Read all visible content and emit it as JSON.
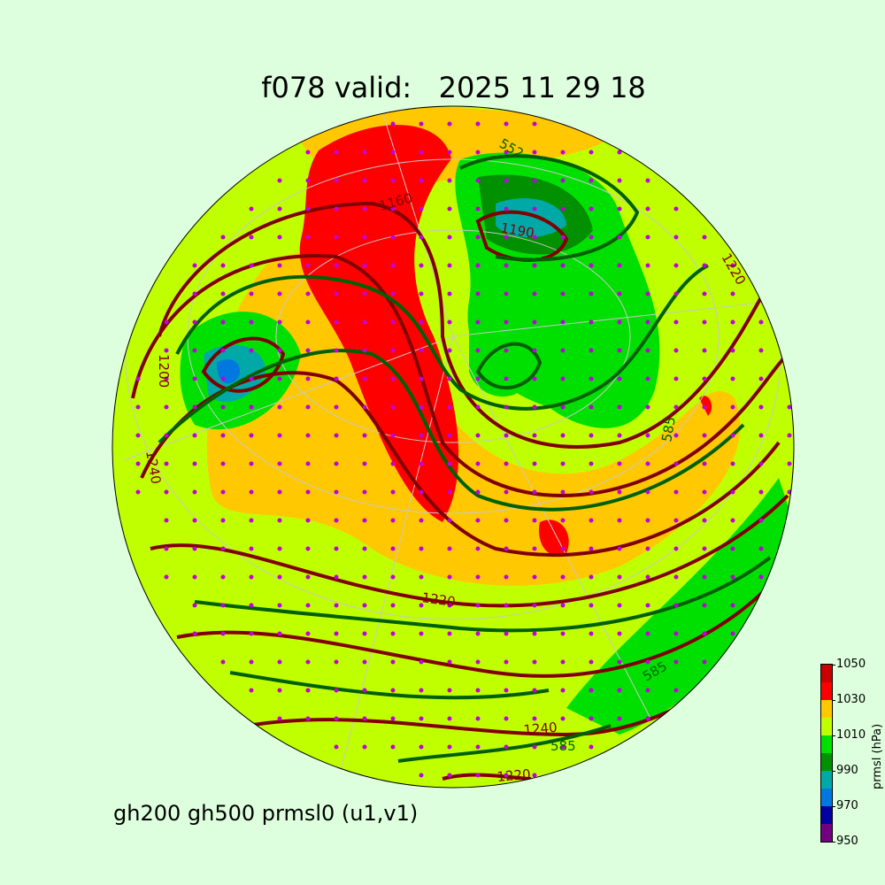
{
  "title": "f078 valid:   2025 11 29 18",
  "subtitle": "gh200 gh500 prmsl0 (u1,v1)",
  "colorbar": {
    "label": "prmsl (hPa)",
    "ticks": [
      "1050",
      "1030",
      "1010",
      "990",
      "970",
      "950"
    ],
    "levels": [
      950,
      960,
      970,
      980,
      990,
      1000,
      1010,
      1020,
      1030,
      1040,
      1050
    ],
    "colors": [
      "#700080",
      "#0000a0",
      "#0078e0",
      "#00a8a8",
      "#009000",
      "#00e000",
      "#c0ff00",
      "#ffc800",
      "#ff0000",
      "#c80000"
    ]
  },
  "map": {
    "projection": "orthographic",
    "background_fill": "#c0ff00",
    "gh200_color": "#800000",
    "gh500_color": "#006000",
    "wind_marker_color": "#c000e0",
    "contour_labels": [
      {
        "text": "1200",
        "color": "#800000"
      },
      {
        "text": "1240",
        "color": "#800000"
      },
      {
        "text": "1220",
        "color": "#800000"
      },
      {
        "text": "1240",
        "color": "#800000"
      },
      {
        "text": "1220",
        "color": "#800000"
      },
      {
        "text": "1190",
        "color": "#800000"
      },
      {
        "text": "1160",
        "color": "#800000"
      },
      {
        "text": "1220",
        "color": "#800000"
      },
      {
        "text": "585",
        "color": "#006000"
      },
      {
        "text": "585",
        "color": "#006000"
      },
      {
        "text": "585",
        "color": "#006000"
      },
      {
        "text": "552",
        "color": "#006000"
      }
    ]
  }
}
